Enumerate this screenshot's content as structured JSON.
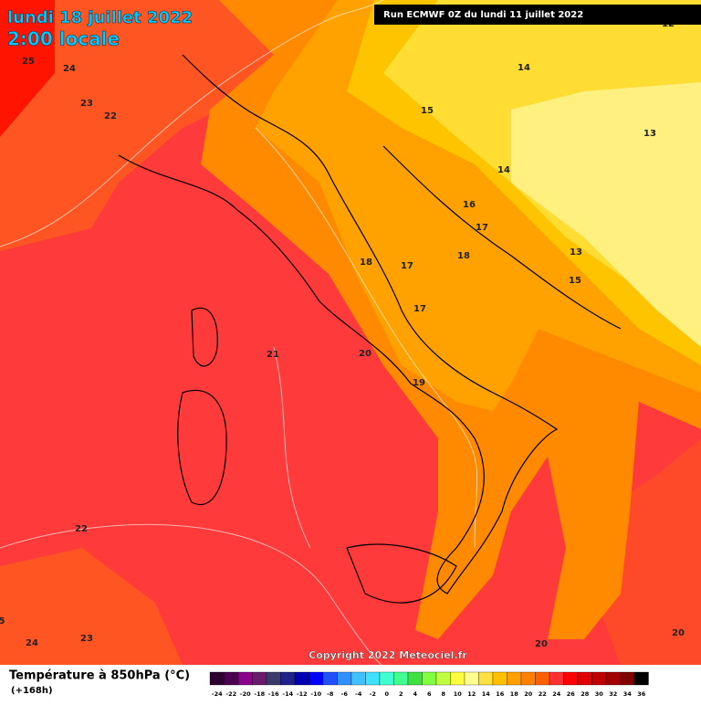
{
  "header": {
    "date": "lundi 18 juillet 2022",
    "time": "2:00 locale",
    "run": "Run ECMWF 0Z du lundi 11 juillet 2022"
  },
  "contour_labels": [
    "25",
    "24",
    "23",
    "22",
    "12",
    "14",
    "15",
    "13",
    "14",
    "16",
    "17",
    "18",
    "17",
    "18",
    "17",
    "13",
    "15",
    "21",
    "20",
    "19",
    "22",
    "5",
    "24",
    "23",
    "20",
    "20"
  ],
  "copyright": "Copyright 2022 Meteociel.fr",
  "footer": {
    "title": "Température à 850hPa (°C)",
    "lead": "(+168h)"
  },
  "legend": {
    "ticks": [
      -24,
      -22,
      -20,
      -18,
      -16,
      -14,
      -12,
      -10,
      -8,
      -6,
      -4,
      -2,
      0,
      2,
      4,
      6,
      8,
      10,
      12,
      14,
      16,
      18,
      20,
      22,
      24,
      26,
      28,
      30,
      32,
      34,
      36
    ],
    "colors": [
      "#2d0030",
      "#4b0050",
      "#8a008a",
      "#6a1a6a",
      "#3a3a6a",
      "#20208a",
      "#0000b0",
      "#0000ff",
      "#2050ff",
      "#3090ff",
      "#40c0ff",
      "#40e0ff",
      "#40ffd0",
      "#40ff90",
      "#40e040",
      "#80ff40",
      "#c0ff40",
      "#ffff40",
      "#ffff90",
      "#ffe040",
      "#ffc000",
      "#ffa000",
      "#ff8000",
      "#ff6000",
      "#ff3030",
      "#ff0000",
      "#e00000",
      "#c00000",
      "#a00000",
      "#800000",
      "#000000"
    ]
  }
}
